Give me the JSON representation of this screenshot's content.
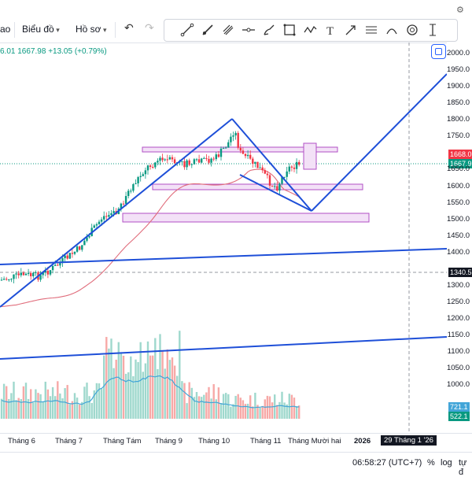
{
  "toolbar": {
    "partial_left": "ao",
    "chart_type_label": "Biểu đồ",
    "profile_label": "Hồ sơ",
    "undo_icon": "undo-icon",
    "redo_icon": "redo-icon"
  },
  "drawing_tools": [
    "trend-line-icon",
    "ray-icon",
    "pitchfork-icon",
    "horizontal-line-icon",
    "brush-icon",
    "rectangle-icon",
    "zigzag-icon",
    "text-icon",
    "arrow-icon",
    "fib-icon",
    "arc-icon",
    "target-icon",
    "measure-icon"
  ],
  "legend": {
    "partial_value": "6.01",
    "close": "1667.98",
    "change": "+13.05 (+0.79%)"
  },
  "price_axis": {
    "labels": [
      "2000.0",
      "1950.0",
      "1900.0",
      "1850.0",
      "1800.0",
      "1750.0",
      "1650.0",
      "1600.0",
      "1550.0",
      "1500.0",
      "1450.0",
      "1400.0",
      "1300.0",
      "1250.0",
      "1200.0",
      "1150.0",
      "1100.0",
      "1050.0",
      "1000.0"
    ],
    "badge_upper": "1668.0",
    "badge_current": "1667.9",
    "badge_crosshair": "1340.5",
    "badge_vol1": "721.1",
    "badge_vol2": "522.1"
  },
  "time_axis": {
    "labels": [
      "Tháng 6",
      "Tháng 7",
      "Tháng Tám",
      "Tháng 9",
      "Tháng 10",
      "Tháng 11",
      "Tháng Mười hai",
      "2026"
    ],
    "crosshair_date": "29 Tháng 1 '26"
  },
  "bottom_bar": {
    "clock": "06:58:27 (UTC+7)",
    "percent_label": "%",
    "log_label": "log",
    "auto_label": "tự đ"
  },
  "colors": {
    "up": "#089981",
    "down": "#f23645",
    "drawing_blue": "#1e4fd8",
    "zone_fill": "#f3e1f7",
    "zone_border": "#b04fc4",
    "ma_line": "#e06c7b",
    "vol_ma": "#42a5d8"
  }
}
